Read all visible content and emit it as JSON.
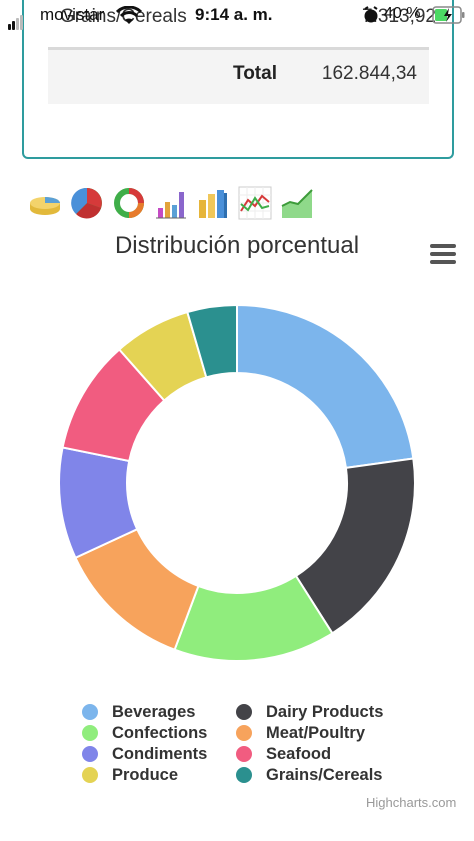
{
  "status_bar": {
    "carrier": "movistar",
    "time": "9:14 a. m.",
    "battery_pct": "40 %"
  },
  "table": {
    "last_row": {
      "category": "Grains/Cereals",
      "value": "7.313,92"
    },
    "total": {
      "label": "Total",
      "value": "162.844,34"
    }
  },
  "toolbar": {
    "buttons": [
      "cylinder-chart",
      "pie-chart",
      "donut-chart",
      "column-chart",
      "3d-column-chart",
      "line-chart",
      "area-chart"
    ]
  },
  "chart_title": "Distribución porcentual",
  "credits": "Highcharts.com",
  "chart_data": {
    "type": "pie",
    "variant": "donut",
    "title": "Distribución porcentual",
    "series": [
      {
        "name": "Beverages",
        "value": 22.8,
        "color": "#7cb5ec"
      },
      {
        "name": "Dairy Products",
        "value": 18.2,
        "color": "#434348"
      },
      {
        "name": "Confections",
        "value": 14.7,
        "color": "#90ed7d"
      },
      {
        "name": "Meat/Poultry",
        "value": 12.4,
        "color": "#f7a35c"
      },
      {
        "name": "Condiments",
        "value": 10.1,
        "color": "#8085e9"
      },
      {
        "name": "Seafood",
        "value": 10.3,
        "color": "#f15c80"
      },
      {
        "name": "Produce",
        "value": 7.0,
        "color": "#e4d354"
      },
      {
        "name": "Grains/Cereals",
        "value": 4.5,
        "color": "#2b908f"
      }
    ],
    "legend_placement": "bottom-center"
  }
}
